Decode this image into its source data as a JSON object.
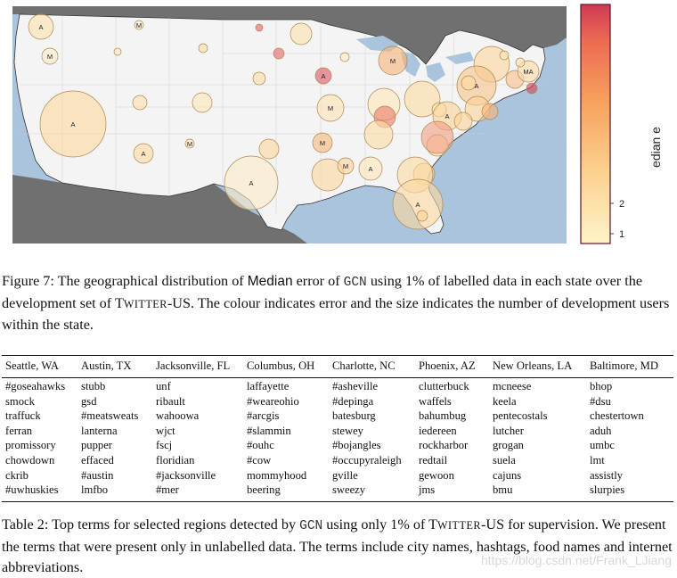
{
  "figure": {
    "colorbar": {
      "label": "edian e",
      "tick_labels": [
        "1",
        "2"
      ],
      "colors": [
        "#fdf4c9",
        "#fcd18e",
        "#f7a05d",
        "#ec6a52",
        "#d03a53"
      ],
      "border_color": "#5a1530"
    },
    "map_colors": {
      "ocean": "#a9c4dc",
      "land_us": "#f4f4f4",
      "land_foreign": "#707070",
      "borders": "#333333"
    },
    "bubbles": [
      {
        "label": "A",
        "color": "#fbe2b0"
      },
      {
        "label": "M",
        "color": "#fcefd3"
      },
      {
        "label": "",
        "color": "#e8636a"
      },
      {
        "label": "",
        "color": "#fbe0ae"
      },
      {
        "label": "",
        "color": "#fbe6bc"
      },
      {
        "label": "",
        "color": "#fbdca4"
      },
      {
        "label": "M",
        "color": "#fcecc8"
      },
      {
        "label": "",
        "color": "#e46a6a"
      },
      {
        "label": "M",
        "color": "#f7b57b"
      },
      {
        "label": "",
        "color": "#fbdca4"
      },
      {
        "label": "",
        "color": "#fcecc8"
      },
      {
        "label": "",
        "color": "#fbd6a0"
      },
      {
        "label": "",
        "color": "#fbe6bc"
      },
      {
        "label": "A",
        "color": "#f7c58c"
      },
      {
        "label": "",
        "color": "#f8c08a"
      },
      {
        "label": "MA",
        "color": "#fcdcaa"
      },
      {
        "label": "",
        "color": "#d8405a"
      },
      {
        "label": "",
        "color": "#fbe0ae"
      },
      {
        "label": "",
        "color": "#fbdca4"
      },
      {
        "label": "A",
        "color": "#e05866"
      },
      {
        "label": "",
        "color": "#fbdca4"
      },
      {
        "label": "",
        "color": "#fbe6bc"
      },
      {
        "label": "",
        "color": "#ec7e6a"
      },
      {
        "label": "A",
        "color": "#fcd8a0"
      },
      {
        "label": "",
        "color": "#fbe6bc"
      },
      {
        "label": "",
        "color": "#fbe0ae"
      },
      {
        "label": "",
        "color": "#fbe6bc"
      },
      {
        "label": "A",
        "color": "#fbd39a"
      },
      {
        "label": "M",
        "color": "#fbe2b4"
      },
      {
        "label": "",
        "color": "#fbd39a"
      },
      {
        "label": "",
        "color": "#f7b57b"
      },
      {
        "label": "",
        "color": "#fbdca4"
      },
      {
        "label": "A",
        "color": "#fcd8a0"
      },
      {
        "label": "",
        "color": "#fbdca4"
      },
      {
        "label": "",
        "color": "#f2a286"
      },
      {
        "label": "",
        "color": "#fbd6a0"
      },
      {
        "label": "M",
        "color": "#fcecc8"
      },
      {
        "label": "M",
        "color": "#f7b87e"
      },
      {
        "label": "A",
        "color": "#fcecc8"
      },
      {
        "label": "",
        "color": "#fbd6a0"
      },
      {
        "label": "M",
        "color": "#fbd39a"
      },
      {
        "label": "A",
        "color": "#fbe6bc"
      },
      {
        "label": "",
        "color": "#fbd39a"
      },
      {
        "label": "",
        "color": "#fbdca4"
      },
      {
        "label": "A",
        "color": "#fcd8a0"
      },
      {
        "label": "",
        "color": "#fbd39a"
      },
      {
        "label": "",
        "color": "#fbd39a"
      }
    ]
  },
  "figure_caption": {
    "t1": "Figure 7: The geographical distribution of ",
    "median": "Median",
    "t2": " error of ",
    "gcn": "GCN",
    "t3": " using 1% of labelled data in each state over the development set of ",
    "tw_T": "T",
    "tw_rest": "WITTER",
    "tw_us": "-US",
    "t4": ". The colour indicates error and the size indicates the number of development users within the state."
  },
  "table": {
    "columns": [
      {
        "header": "Seattle, WA",
        "terms": [
          "#goseahawks",
          "smock",
          "traffuck",
          "ferran",
          "promissory",
          "chowdown",
          "ckrib",
          "#uwhuskies"
        ]
      },
      {
        "header": "Austin, TX",
        "terms": [
          "stubb",
          "gsd",
          "#meatsweats",
          "lanterna",
          "pupper",
          "effaced",
          "#austin",
          "lmfbo"
        ]
      },
      {
        "header": "Jacksonville, FL",
        "terms": [
          "unf",
          "ribault",
          "wahoowa",
          "wjct",
          "fscj",
          "floridian",
          "#jacksonville",
          "#mer"
        ]
      },
      {
        "header": "Columbus, OH",
        "terms": [
          "laffayette",
          "#weareohio",
          "#arcgis",
          "#slammin",
          "#ouhc",
          "#cow",
          "mommyhood",
          "beering"
        ]
      },
      {
        "header": "Charlotte, NC",
        "terms": [
          "#asheville",
          "#depinga",
          "batesburg",
          "stewey",
          "#bojangles",
          "#occupyraleigh",
          "gville",
          "sweezy"
        ]
      },
      {
        "header": "Phoenix, AZ",
        "terms": [
          "clutterbuck",
          "waffels",
          "bahumbug",
          "iedereen",
          "rockharbor",
          "redtail",
          "gewoon",
          "jms"
        ]
      },
      {
        "header": "New Orleans, LA",
        "terms": [
          "mcneese",
          "keela",
          "pentecostals",
          "lutcher",
          "grogan",
          "suela",
          "cajuns",
          "bmu"
        ]
      },
      {
        "header": "Baltimore, MD",
        "terms": [
          "bhop",
          "#dsu",
          "chestertown",
          "aduh",
          "umbc",
          "lmt",
          "assistly",
          "slurpies"
        ]
      }
    ]
  },
  "table_caption": {
    "t1": "Table 2: Top terms for selected regions detected by ",
    "gcn": "GCN",
    "t2": " using only 1% of ",
    "tw_T": "T",
    "tw_rest": "WITTER",
    "tw_us": "-US",
    "t3": " for supervision. We present the terms that were present only in unlabelled data. The terms include city names, hashtags, food names and internet abbreviations."
  },
  "watermark": "https://blog.csdn.net/Frank_LJiang"
}
